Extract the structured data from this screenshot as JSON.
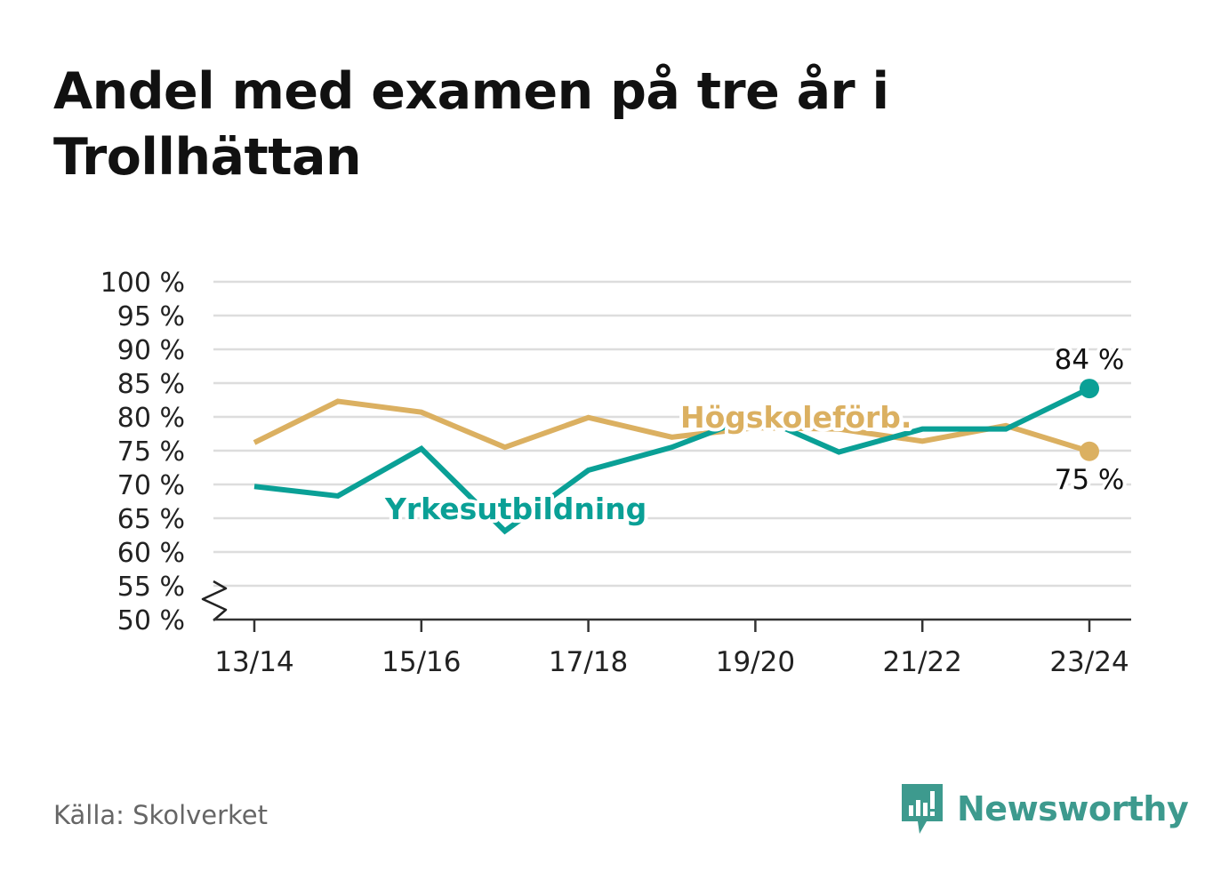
{
  "title": "Andel med examen på tre år i Trollhättan",
  "source": "Källa: Skolverket",
  "brand": {
    "name": "Newsworthy",
    "color": "#3d9a8e",
    "icon": "newsworthy-logo-icon"
  },
  "chart_data": {
    "type": "line",
    "x": [
      "13/14",
      "14/15",
      "15/16",
      "16/17",
      "17/18",
      "18/19",
      "19/20",
      "20/21",
      "21/22",
      "22/23",
      "23/24"
    ],
    "xticks": [
      "13/14",
      "15/16",
      "17/18",
      "19/20",
      "21/22",
      "23/24"
    ],
    "yticks": [
      "50 %",
      "55 %",
      "60 %",
      "65 %",
      "70 %",
      "75 %",
      "80 %",
      "85 %",
      "90 %",
      "95 %",
      "100 %"
    ],
    "ylim": [
      50,
      100
    ],
    "axis_break": true,
    "grid": true,
    "series": [
      {
        "name": "Högskoleförb.",
        "color": "#dbb061",
        "values": [
          76.2,
          82.3,
          80.7,
          75.5,
          79.9,
          77.0,
          78.4,
          78.2,
          76.4,
          78.7,
          74.9
        ],
        "end_label": "75 %"
      },
      {
        "name": "Yrkesutbildning",
        "color": "#0aa096",
        "values": [
          69.7,
          68.3,
          75.3,
          63.1,
          72.1,
          75.5,
          80.2,
          74.8,
          78.2,
          78.2,
          84.2
        ],
        "end_label": "84 %"
      }
    ]
  }
}
